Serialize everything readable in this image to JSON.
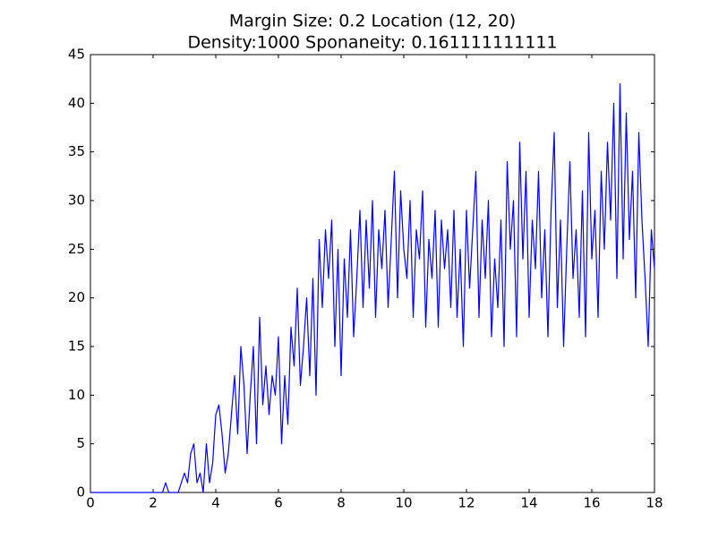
{
  "chart_data": {
    "type": "line",
    "title": "Margin Size: 0.2 Location (12, 20)",
    "subtitle": "Density:1000 Sponaneity: 0.161111111111",
    "color": "#0000ff",
    "x": [
      0,
      0.1,
      0.2,
      0.3,
      0.4,
      0.5,
      0.6,
      0.7,
      0.8,
      0.9,
      1,
      1.1,
      1.2,
      1.3,
      1.4,
      1.5,
      1.6,
      1.7,
      1.8,
      1.9,
      2,
      2.1,
      2.2,
      2.3,
      2.4,
      2.5,
      2.6,
      2.7,
      2.8,
      2.9,
      3,
      3.1,
      3.2,
      3.3,
      3.4,
      3.5,
      3.6,
      3.7,
      3.8,
      3.9,
      4,
      4.1,
      4.2,
      4.3,
      4.4,
      4.5,
      4.6,
      4.7,
      4.8,
      4.9,
      5,
      5.1,
      5.2,
      5.3,
      5.4,
      5.5,
      5.6,
      5.7,
      5.8,
      5.9,
      6,
      6.1,
      6.2,
      6.3,
      6.4,
      6.5,
      6.6,
      6.7,
      6.8,
      6.9,
      7,
      7.1,
      7.2,
      7.3,
      7.4,
      7.5,
      7.6,
      7.7,
      7.8,
      7.9,
      8,
      8.1,
      8.2,
      8.3,
      8.4,
      8.5,
      8.6,
      8.7,
      8.8,
      8.9,
      9,
      9.1,
      9.2,
      9.3,
      9.4,
      9.5,
      9.6,
      9.7,
      9.8,
      9.9,
      10,
      10.1,
      10.2,
      10.3,
      10.4,
      10.5,
      10.6,
      10.7,
      10.8,
      10.9,
      11,
      11.1,
      11.2,
      11.3,
      11.4,
      11.5,
      11.6,
      11.7,
      11.8,
      11.9,
      12,
      12.1,
      12.2,
      12.3,
      12.4,
      12.5,
      12.6,
      12.7,
      12.8,
      12.9,
      13,
      13.1,
      13.2,
      13.3,
      13.4,
      13.5,
      13.6,
      13.7,
      13.8,
      13.9,
      14,
      14.1,
      14.2,
      14.3,
      14.4,
      14.5,
      14.6,
      14.7,
      14.8,
      14.9,
      15,
      15.1,
      15.2,
      15.3,
      15.4,
      15.5,
      15.6,
      15.7,
      15.8,
      15.9,
      16,
      16.1,
      16.2,
      16.3,
      16.4,
      16.5,
      16.6,
      16.7,
      16.8,
      16.9,
      17,
      17.1,
      17.2,
      17.3,
      17.4,
      17.5,
      17.6,
      17.7,
      17.8,
      17.9,
      18
    ],
    "values": [
      0,
      0,
      0,
      0,
      0,
      0,
      0,
      0,
      0,
      0,
      0,
      0,
      0,
      0,
      0,
      0,
      0,
      0,
      0,
      0,
      0,
      0,
      0,
      0,
      1,
      0,
      0,
      0,
      0,
      1,
      2,
      1,
      4,
      5,
      1,
      2,
      0,
      5,
      1,
      3,
      8,
      9,
      6,
      2,
      4,
      8,
      12,
      6,
      15,
      11,
      4,
      10,
      15,
      5,
      18,
      9,
      13,
      8,
      12,
      10,
      16,
      5,
      12,
      7,
      17,
      13,
      21,
      11,
      15,
      20,
      12,
      22,
      10,
      26,
      19,
      27,
      22,
      28,
      15,
      25,
      12,
      24,
      18,
      27,
      16,
      22,
      29,
      19,
      28,
      21,
      30,
      18,
      27,
      23,
      29,
      19,
      26,
      33,
      20,
      31,
      25,
      22,
      30,
      18,
      27,
      24,
      31,
      17,
      26,
      22,
      29,
      17,
      28,
      23,
      27,
      19,
      29,
      18,
      25,
      15,
      29,
      21,
      27,
      33,
      18,
      28,
      22,
      30,
      16,
      24,
      19,
      28,
      15,
      34,
      25,
      30,
      16,
      36,
      24,
      33,
      18,
      28,
      23,
      33,
      20,
      27,
      16,
      29,
      37,
      19,
      28,
      15,
      25,
      34,
      22,
      27,
      18,
      31,
      16,
      37,
      24,
      29,
      18,
      33,
      25,
      36,
      28,
      40,
      22,
      42,
      24,
      39,
      26,
      33,
      20,
      37,
      28,
      22,
      15,
      27,
      23
    ],
    "xlim": [
      0,
      18
    ],
    "xticks": [
      0,
      2,
      4,
      6,
      8,
      10,
      12,
      14,
      16,
      18
    ],
    "ylim": [
      0,
      45
    ],
    "yticks": [
      0,
      5,
      10,
      15,
      20,
      25,
      30,
      35,
      40,
      45
    ]
  }
}
